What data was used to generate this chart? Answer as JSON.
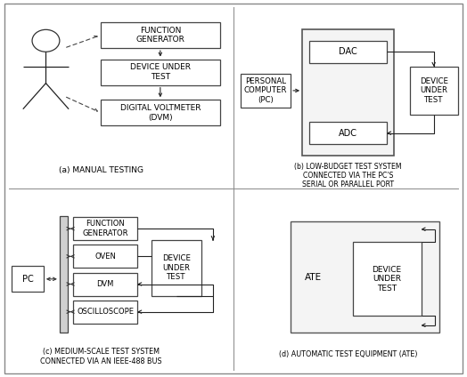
{
  "bg_color": "#ffffff",
  "box_face": "#ffffff",
  "box_edge": "#444444",
  "outer_face": "#f0f0f0",
  "bus_face": "#cccccc",
  "text_color": "#000000",
  "caption_a": "(a) MANUAL TESTING",
  "caption_b": "(b) LOW-BUDGET TEST SYSTEM\nCONNECTED VIA THE PC'S\nSERIAL OR PARALLEL PORT",
  "caption_c": "(c) MEDIUM-SCALE TEST SYSTEM\nCONNECTED VIA AN IEEE-488 BUS",
  "caption_d": "(d) AUTOMATIC TEST EQUIPMENT (ATE)"
}
